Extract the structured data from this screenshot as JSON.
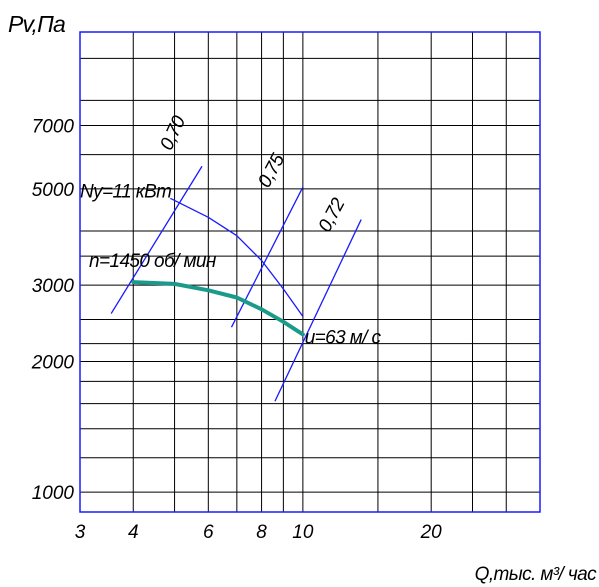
{
  "chart_data": {
    "type": "line",
    "title": "",
    "ylabel": "Pv,Па",
    "xlabel": "Q,тыс. м³/ час",
    "x_scale": "log",
    "y_scale": "log",
    "xlim": [
      3.0,
      36.0
    ],
    "ylim": [
      900,
      11500
    ],
    "grid": true,
    "x_ticks": [
      {
        "value": 3,
        "label": "3"
      },
      {
        "value": 4,
        "label": "4"
      },
      {
        "value": 6,
        "label": "6"
      },
      {
        "value": 8,
        "label": "8"
      },
      {
        "value": 10,
        "label": "10"
      },
      {
        "value": 20,
        "label": "20"
      }
    ],
    "y_ticks": [
      {
        "value": 1000,
        "label": "1000"
      },
      {
        "value": 2000,
        "label": "2000"
      },
      {
        "value": 3000,
        "label": "3000"
      },
      {
        "value": 5000,
        "label": "5000"
      },
      {
        "value": 7000,
        "label": "7000"
      }
    ],
    "x_gridlines": [
      3,
      4,
      5,
      6,
      7,
      8,
      9,
      10,
      15,
      20,
      25,
      30
    ],
    "y_gridlines": [
      900,
      1000,
      1200,
      1400,
      1600,
      1800,
      2000,
      2200,
      2500,
      3000,
      3500,
      4000,
      5000,
      6000,
      7000,
      8000,
      10000,
      11500
    ],
    "series": [
      {
        "name": "n=1450 об/ мин",
        "color": "#1a9a8a",
        "width": 4,
        "points": [
          [
            4.0,
            3050
          ],
          [
            5.0,
            3020
          ],
          [
            6.0,
            2920
          ],
          [
            7.0,
            2810
          ],
          [
            8.0,
            2640
          ],
          [
            9.0,
            2470
          ],
          [
            10.0,
            2310
          ]
        ]
      },
      {
        "name": "Ny=11 кВт",
        "color": "#1a1aff",
        "width": 1.3,
        "points": [
          [
            4.9,
            4750
          ],
          [
            6.0,
            4300
          ],
          [
            7.0,
            3900
          ],
          [
            8.0,
            3420
          ],
          [
            9.0,
            2940
          ],
          [
            10.0,
            2540
          ]
        ]
      }
    ],
    "efficiency_lines": [
      {
        "label": "0,70",
        "color": "#1a1aff",
        "points": [
          [
            3.55,
            2580
          ],
          [
            5.8,
            5640
          ]
        ]
      },
      {
        "label": "0,75",
        "color": "#1a1aff",
        "points": [
          [
            6.8,
            2400
          ],
          [
            10.0,
            5050
          ]
        ]
      },
      {
        "label": "0,72",
        "color": "#1a1aff",
        "points": [
          [
            8.6,
            1620
          ],
          [
            13.7,
            4250
          ]
        ]
      }
    ],
    "annotations": [
      {
        "text": "Ny=11 кВт",
        "at": [
          3.0,
          4780
        ]
      },
      {
        "text": "n=1450 об/ мин",
        "at": [
          3.15,
          3300
        ]
      },
      {
        "text": "u=63 м/ с",
        "at": [
          10.1,
          2200
        ]
      },
      {
        "text": "0,70",
        "at": [
          4.9,
          6100
        ]
      },
      {
        "text": "0,75",
        "at": [
          8.3,
          5000
        ]
      },
      {
        "text": "0,72",
        "at": [
          11.5,
          3950
        ]
      }
    ]
  }
}
